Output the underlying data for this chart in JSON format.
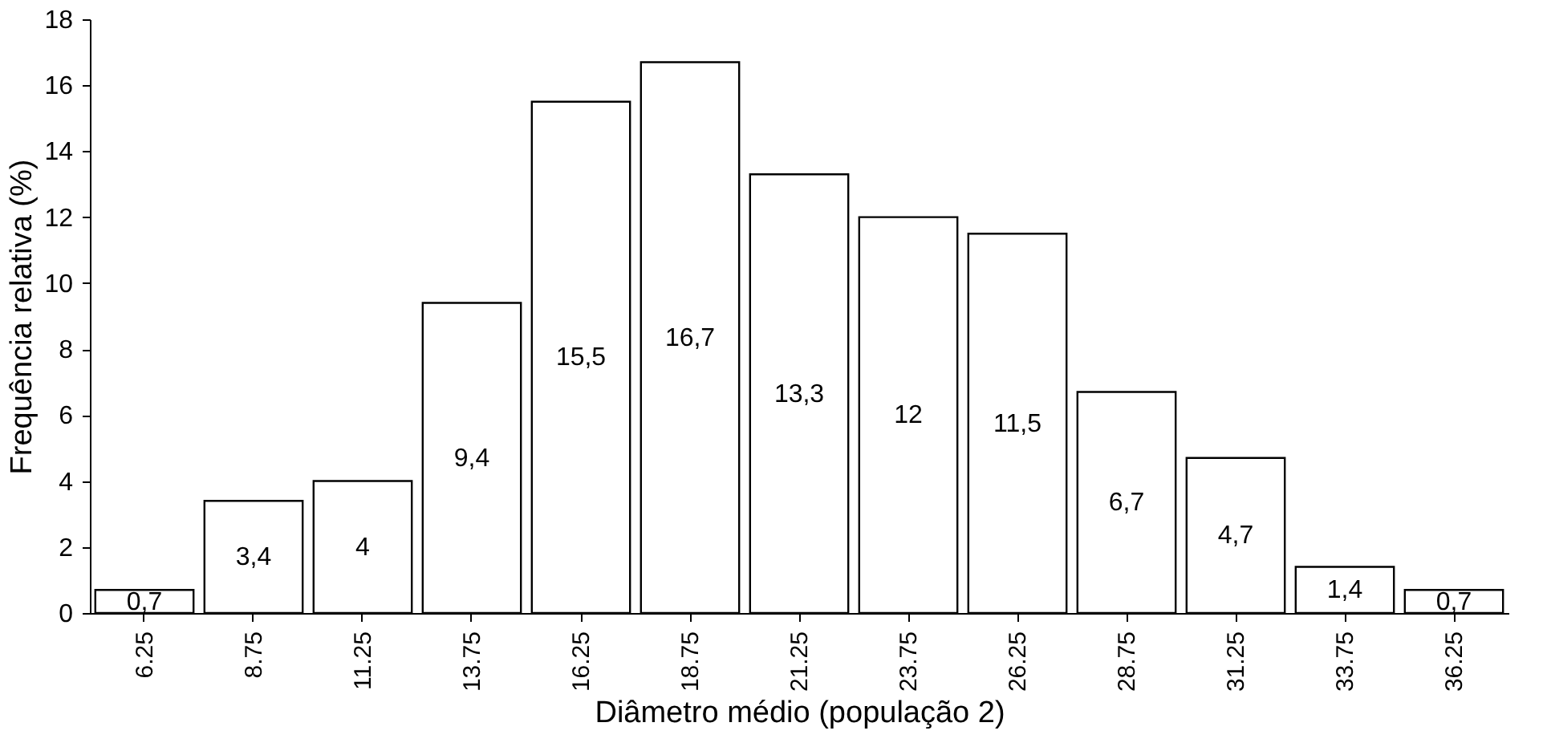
{
  "chart_data": {
    "type": "bar",
    "xlabel": "Diâmetro médio (população 2)",
    "ylabel": "Frequência relativa (%)",
    "categories": [
      "6.25",
      "8.75",
      "11.25",
      "13.75",
      "16.25",
      "18.75",
      "21.25",
      "23.75",
      "26.25",
      "28.75",
      "31.25",
      "33.75",
      "36.25"
    ],
    "values": [
      0.7,
      3.4,
      4,
      9.4,
      15.5,
      16.7,
      13.3,
      12,
      11.5,
      6.7,
      4.7,
      1.4,
      0.7
    ],
    "value_labels": [
      "0,7",
      "3,4",
      "4",
      "9,4",
      "15,5",
      "16,7",
      "13,3",
      "12",
      "11,5",
      "6,7",
      "4,7",
      "1,4",
      "0,7"
    ],
    "color": "#ffffff",
    "ylim": [
      0,
      18
    ],
    "yticks": [
      0,
      2,
      4,
      6,
      8,
      10,
      12,
      14,
      16,
      18
    ],
    "grid": false
  }
}
